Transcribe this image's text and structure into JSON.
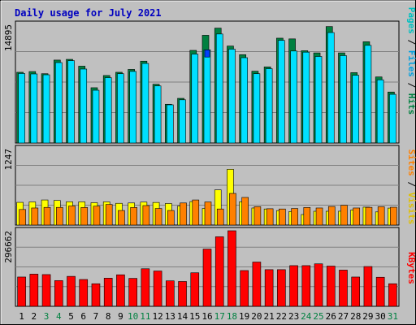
{
  "chart_data": {
    "type": "bar",
    "title": "Daily usage for July 2021",
    "categories": [
      "1",
      "2",
      "3",
      "4",
      "5",
      "6",
      "7",
      "8",
      "9",
      "10",
      "11",
      "12",
      "13",
      "14",
      "15",
      "16",
      "17",
      "18",
      "19",
      "20",
      "21",
      "22",
      "23",
      "24",
      "25",
      "26",
      "27",
      "28",
      "29",
      "30",
      "31"
    ],
    "weekend_days": [
      "3",
      "4",
      "10",
      "11",
      "17",
      "18",
      "24",
      "25",
      "31"
    ],
    "panels": [
      {
        "name": "Pages / Files / Hits",
        "axis_max_label": "14895",
        "ylim": [
          0,
          16520
        ],
        "series": [
          {
            "name": "Hits",
            "color": "#008040",
            "values": [
              9850,
              9950,
              9650,
              11550,
              11650,
              10700,
              7700,
              9400,
              9850,
              10250,
              11400,
              8180,
              5400,
              6220,
              12900,
              15000,
              16000,
              13500,
              12300,
              10000,
              10600,
              14600,
              14500,
              12850,
              12550,
              16220,
              12550,
              9800,
              14100,
              9200,
              7100
            ]
          },
          {
            "name": "Files",
            "color": "#00e0ff",
            "values": [
              9680,
              9620,
              9500,
              11200,
              11470,
              10300,
              7350,
              9100,
              9650,
              9970,
              11080,
              7950,
              5320,
              6020,
              12380,
              12970,
              15180,
              13070,
              11880,
              9650,
              10350,
              14290,
              12810,
              12650,
              12050,
              15380,
              12170,
              9430,
              13600,
              8800,
              6780
            ]
          },
          {
            "name": "Pages",
            "color": "#0040ff",
            "values": [
              0,
              0,
              0,
              0,
              0,
              0,
              0,
              0,
              0,
              0,
              0,
              0,
              0,
              0,
              0,
              1000,
              0,
              0,
              0,
              0,
              0,
              0,
              0,
              0,
              0,
              0,
              0,
              0,
              0,
              0,
              0
            ]
          }
        ]
      },
      {
        "name": "Sites / Visits",
        "axis_max_label": "1247",
        "ylim": [
          0,
          1520
        ],
        "series": [
          {
            "name": "Visits",
            "color": "#ffff00",
            "values": [
              452,
              460,
              500,
              490,
              464,
              462,
              445,
              462,
              433,
              440,
              457,
              450,
              429,
              380,
              467,
              330,
              700,
              1110,
              465,
              340,
              320,
              288,
              270,
              210,
              275,
              275,
              276,
              302,
              357,
              262,
              338
            ]
          },
          {
            "name": "Sites",
            "color": "#ff8000",
            "values": [
              310,
              340,
              352,
              352,
              380,
              350,
              376,
              410,
              290,
              350,
              388,
              330,
              290,
              440,
              500,
              460,
              320,
              630,
              550,
              366,
              325,
              320,
              330,
              350,
              340,
              370,
              393,
              340,
              353,
              365,
              355
            ]
          }
        ]
      },
      {
        "name": "KBytes",
        "axis_max_label": "296662",
        "ylim": [
          0,
          338000
        ],
        "series": [
          {
            "name": "KBytes",
            "color": "#ff0000",
            "values": [
              131000,
              144000,
              142000,
              115000,
              134000,
              120000,
              101000,
              126000,
              141000,
              125000,
              168000,
              158000,
              114000,
              111000,
              150000,
              256000,
              311000,
              338000,
              160000,
              198000,
              164000,
              164000,
              182000,
              182000,
              190000,
              180000,
              162000,
              131000,
              178000,
              130000,
              101000
            ]
          }
        ]
      }
    ],
    "side_labels": [
      {
        "text": "Pages",
        "color": "#00c0c0"
      },
      {
        "text": " / ",
        "color": "#000000"
      },
      {
        "text": "Files",
        "color": "#00a0e0"
      },
      {
        "text": " / ",
        "color": "#000000"
      },
      {
        "text": "Hits",
        "color": "#008040"
      },
      {
        "text": "Sites",
        "color": "#ff8000"
      },
      {
        "text": " / ",
        "color": "#000000"
      },
      {
        "text": "Visits",
        "color": "#e0c000"
      },
      {
        "text": "KBytes",
        "color": "#ff0000"
      }
    ],
    "colors": {
      "frame": "#c0c0c0",
      "plot_bg": "#c0c0c0",
      "title": "#0000c0",
      "weekday_label": "#000000",
      "weekend_label": "#008040"
    }
  }
}
